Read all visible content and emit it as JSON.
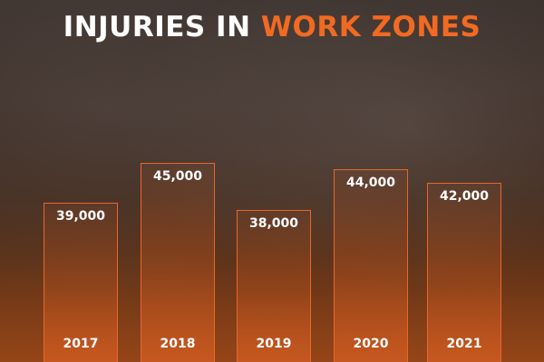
{
  "chart_data": {
    "type": "bar",
    "title": "INJURIES IN WORK ZONES",
    "title_parts": {
      "plain": "INJURIES IN ",
      "accent": "WORK ZONES"
    },
    "categories": [
      "2017",
      "2018",
      "2019",
      "2020",
      "2021"
    ],
    "values": [
      39000,
      45000,
      38000,
      44000,
      42000
    ],
    "labels": [
      "39,000",
      "45,000",
      "38,000",
      "44,000",
      "42,000"
    ],
    "colors": {
      "accent": "#f26a21",
      "bar_border": "#e8672a",
      "text": "#ffffff"
    }
  }
}
